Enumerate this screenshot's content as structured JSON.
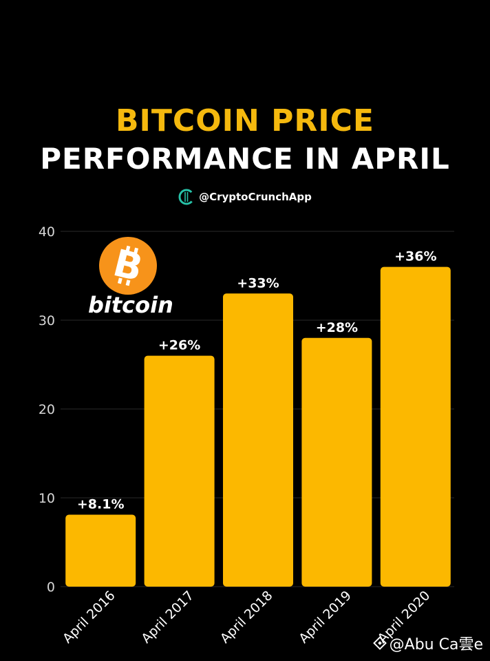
{
  "header": {
    "title_line1": "BITCOIN PRICE",
    "title_line2": "PERFORMANCE IN APRIL",
    "handle": "@CryptoCrunchApp"
  },
  "logo": {
    "word": "bitcoin",
    "icon": "bitcoin-coin-icon"
  },
  "watermark": {
    "text": "@Abu Ca雲e",
    "icon": "diamond-logo-icon"
  },
  "colors": {
    "background": "#000000",
    "bar": "#fcb800",
    "title_accent": "#f5b90e",
    "grid": "#2a2a2a",
    "coin": "#f7931a"
  },
  "chart_data": {
    "type": "bar",
    "categories": [
      "April 2016",
      "April 2017",
      "April 2018",
      "April 2019",
      "April 2020"
    ],
    "values": [
      8.1,
      26,
      33,
      28,
      36
    ],
    "data_labels": [
      "+8.1%",
      "+26%",
      "+33%",
      "+28%",
      "+36%"
    ],
    "yticks": [
      0,
      10,
      20,
      30,
      40
    ],
    "ylim": [
      0,
      40
    ],
    "grid": true,
    "title": "BITCOIN PRICE PERFORMANCE IN APRIL",
    "xlabel": "",
    "ylabel": ""
  }
}
